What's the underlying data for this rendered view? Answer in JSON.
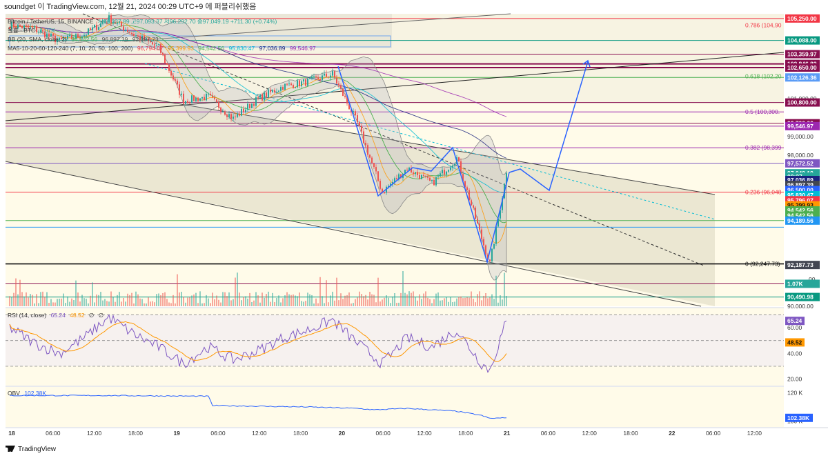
{
  "header": {
    "author_line": "soundget 이 TradingView.com, 12월 21, 2024 00:29 UTC+9 에 퍼블리쉬했음"
  },
  "legend": {
    "symbol": "Bitcoin / TetherUS, 15, BINANCE",
    "ohlc": "시96,337.89 고97,093.37 저96,292.70 종97,049.19 +711.30 (+0.74%)",
    "volume": "볼륨 · BTC",
    "volume_value": "1.07K",
    "bb": "BB (20, SMA, close, 2)",
    "bb_values": [
      "94,542.56",
      "96,897.39",
      "92,187.73"
    ],
    "ma": "MA5-10-20-60-120-240 (7, 10, 20, 50, 100, 200)",
    "ma_values": [
      "96,794.07",
      "95,399.93",
      "94,542.56",
      "95,830.47",
      "97,036.89",
      "99,546.97"
    ],
    "rsi": "RSI (14, close)",
    "rsi_values": [
      "65.24",
      "48.52",
      "∅",
      "∅"
    ],
    "obv": "OBV",
    "obv_value": "102.38K"
  },
  "colors": {
    "background": "#fffbe9",
    "up": "#26a69a",
    "down": "#ef5350",
    "drawing": "#2962ff"
  },
  "fib_labels": [
    {
      "text": "0.786 (104,90",
      "price": 104900,
      "color": "#f23645"
    },
    {
      "text": "0.618 (102,20",
      "price": 102200,
      "color": "#4caf50"
    },
    {
      "text": "0.5 (100,300.",
      "price": 100300,
      "color": "#9c27b0"
    },
    {
      "text": "0.382 (98,399",
      "price": 98399,
      "color": "#9c27b0"
    },
    {
      "text": "0.236 (96,048",
      "price": 96048,
      "color": "#f23645"
    },
    {
      "text": "0 (92,247.73)",
      "price": 92247.73,
      "color": "#111111"
    }
  ],
  "price_axis": {
    "ticks": [
      {
        "text": "101,000.00",
        "price": 101000
      },
      {
        "text": "99,000.00",
        "price": 99000
      },
      {
        "text": "98,000.00",
        "price": 98000
      },
      {
        "text": "90,000.00",
        "price": 90000
      }
    ],
    "badges": [
      {
        "text": "105,250.00",
        "price": 105250,
        "bg": "#f23645",
        "fg": "#ffffff"
      },
      {
        "text": "104,088.00",
        "price": 104088,
        "bg": "#089981",
        "fg": "#ffffff"
      },
      {
        "text": "103,359.97",
        "price": 103359.97,
        "bg": "#880e4f",
        "fg": "#ffffff"
      },
      {
        "text": "102,846.82",
        "price": 102846.82,
        "bg": "#880e4f",
        "fg": "#ffffff"
      },
      {
        "text": "102,650.00",
        "price": 102650,
        "bg": "#880e4f",
        "fg": "#ffffff"
      },
      {
        "text": "102,126.36",
        "price": 102126.36,
        "bg": "#5b9cf6",
        "fg": "#ffffff"
      },
      {
        "text": "100,800.00",
        "price": 100800,
        "bg": "#880e4f",
        "fg": "#ffffff"
      },
      {
        "text": "99,700.00",
        "price": 99700,
        "bg": "#880e4f",
        "fg": "#ffffff"
      },
      {
        "text": "99,546.97",
        "price": 99546.97,
        "bg": "#9c27b0",
        "fg": "#ffffff"
      },
      {
        "text": "97,572.52",
        "price": 97572.52,
        "bg": "#7e57c2",
        "fg": "#ffffff"
      },
      {
        "text": "97,049.19",
        "price": 97049.19,
        "bg": "#26a69a",
        "fg": "#ffffff"
      },
      {
        "text": "00:37",
        "price": 96870,
        "bg": "#26a69a",
        "fg": "#ffffff"
      },
      {
        "text": "97,036.89",
        "price": 96690,
        "bg": "#1a237e",
        "fg": "#ffffff"
      },
      {
        "text": "96,897.39",
        "price": 96430,
        "bg": "#434651",
        "fg": "#ffffff"
      },
      {
        "text": "96,500.00",
        "price": 96160,
        "bg": "#2962ff",
        "fg": "#ffffff"
      },
      {
        "text": "95,830.47",
        "price": 95890,
        "bg": "#00bcd4",
        "fg": "#ffffff"
      },
      {
        "text": "95,796.07",
        "price": 95620,
        "bg": "#f23645",
        "fg": "#ffffff"
      },
      {
        "text": "95,399.93",
        "price": 95350,
        "bg": "#ff9800",
        "fg": "#111111"
      },
      {
        "text": "94,542.56",
        "price": 95080,
        "bg": "#4caf50",
        "fg": "#ffffff"
      },
      {
        "text": "94,542.56",
        "price": 94810,
        "bg": "#4caf50",
        "fg": "#ffffff"
      },
      {
        "text": "94,189.56",
        "price": 94540,
        "bg": "#2196f3",
        "fg": "#ffffff"
      },
      {
        "text": "92,187.73",
        "price": 92187.73,
        "bg": "#434651",
        "fg": "#ffffff"
      },
      {
        "text": "1.07K",
        "price": 91190,
        "bg": "#26a69a",
        "fg": "#ffffff"
      },
      {
        "text": "90,490.98",
        "price": 90490.98,
        "bg": "#089981",
        "fg": "#ffffff"
      }
    ],
    "partial_tick": {
      "text": "00",
      "price": 91430
    }
  },
  "rsi_axis": {
    "ticks": [
      {
        "text": "60.00",
        "value": 60
      },
      {
        "text": "40.00",
        "value": 40
      },
      {
        "text": "20.00",
        "value": 20
      }
    ],
    "badges": [
      {
        "text": "65.24",
        "value": 65.24,
        "bg": "#7e57c2",
        "fg": "#ffffff"
      },
      {
        "text": "48.52",
        "value": 48.52,
        "bg": "#ff9800",
        "fg": "#111111"
      }
    ]
  },
  "obv_axis": {
    "ticks": [
      {
        "text": "120 K",
        "value": 120
      },
      {
        "text": "100 K",
        "value": 100
      }
    ],
    "badges": [
      {
        "text": "102.38K",
        "value": 102.38,
        "bg": "#2962ff",
        "fg": "#ffffff"
      }
    ]
  },
  "time_axis": [
    "18",
    "06:00",
    "12:00",
    "18:00",
    "19",
    "06:00",
    "12:00",
    "18:00",
    "20",
    "06:00",
    "12:00",
    "18:00",
    "21",
    "06:00",
    "12:00",
    "18:00",
    "22",
    "06:00",
    "12:00"
  ],
  "chart_data": {
    "type": "line",
    "series": [
      {
        "name": "Bitcoin / TetherUS, 15, BINANCE",
        "x": [
          0,
          12,
          24,
          36,
          48,
          60,
          72,
          84,
          96,
          108,
          120,
          132,
          144,
          156,
          168,
          180,
          192,
          204,
          216,
          228,
          232,
          240
        ],
        "values": [
          104900,
          104700,
          104050,
          104400,
          105250,
          104400,
          103700,
          100900,
          101100,
          99950,
          101000,
          101650,
          101900,
          102300,
          99700,
          96050,
          97320,
          96500,
          97850,
          93600,
          92250,
          97049
        ]
      },
      {
        "name": "RSI (14, close)",
        "x": [
          0,
          12,
          24,
          36,
          48,
          60,
          72,
          84,
          96,
          108,
          120,
          132,
          144,
          156,
          168,
          180,
          192,
          204,
          216,
          228,
          232,
          240
        ],
        "values": [
          60,
          48,
          40,
          52,
          68,
          55,
          45,
          32,
          45,
          35,
          42,
          52,
          58,
          66,
          48,
          32,
          52,
          45,
          58,
          32,
          27,
          65.24
        ]
      },
      {
        "name": "OBV",
        "x": [
          0,
          48,
          96,
          98,
          144,
          168,
          176,
          192,
          216,
          228,
          232,
          240
        ],
        "values": [
          118,
          118,
          117.5,
          111,
          110,
          109,
          108,
          109,
          107,
          104,
          102,
          102.38
        ]
      }
    ],
    "ylim": [
      90000,
      105500
    ],
    "rsi_ylim": [
      15,
      75
    ],
    "obv_ylim": [
      96,
      124
    ]
  }
}
